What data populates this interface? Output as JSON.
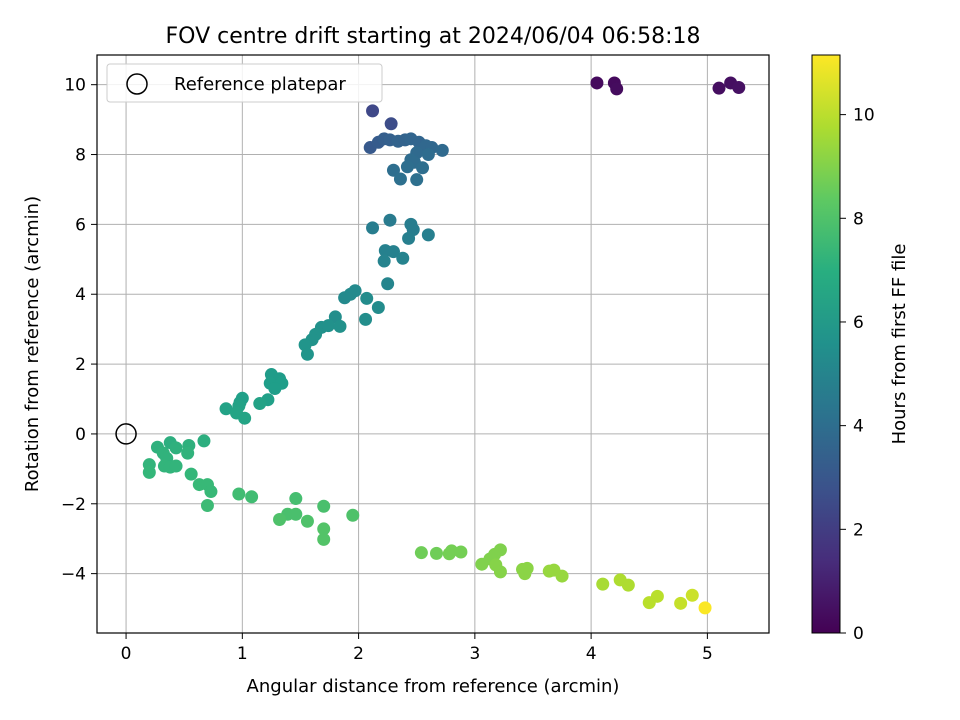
{
  "chart_data": {
    "type": "scatter",
    "title": "FOV centre drift starting at 2024/06/04 06:58:18",
    "xlabel": "Angular distance from reference (arcmin)",
    "ylabel": "Rotation from reference (arcmin)",
    "xlim": [
      -0.25,
      5.53
    ],
    "ylim": [
      -5.7,
      10.85
    ],
    "xticks": [
      0,
      1,
      2,
      3,
      4,
      5
    ],
    "yticks": [
      -4,
      -2,
      0,
      2,
      4,
      6,
      8,
      10
    ],
    "grid": true,
    "legend": {
      "placement": "top-left",
      "entries": [
        "Reference platepar"
      ]
    },
    "reference_point": {
      "x": 0,
      "y": 0,
      "label": "Reference platepar"
    },
    "colorbar": {
      "label": "Hours from first FF file",
      "range": [
        0,
        11.15
      ],
      "ticks": [
        0,
        2,
        4,
        6,
        8,
        10
      ],
      "colormap": "viridis"
    },
    "points": [
      {
        "x": 4.05,
        "y": 10.05,
        "c": 0.3
      },
      {
        "x": 4.2,
        "y": 10.05,
        "c": 0.3
      },
      {
        "x": 4.22,
        "y": 9.88,
        "c": 0.35
      },
      {
        "x": 5.1,
        "y": 9.9,
        "c": 0.4
      },
      {
        "x": 5.2,
        "y": 10.05,
        "c": 0.45
      },
      {
        "x": 5.27,
        "y": 9.92,
        "c": 0.5
      },
      {
        "x": 2.12,
        "y": 9.25,
        "c": 2.4
      },
      {
        "x": 2.28,
        "y": 8.88,
        "c": 2.6
      },
      {
        "x": 2.1,
        "y": 8.2,
        "c": 3.1
      },
      {
        "x": 2.17,
        "y": 8.35,
        "c": 3.2
      },
      {
        "x": 2.22,
        "y": 8.45,
        "c": 3.3
      },
      {
        "x": 2.27,
        "y": 8.42,
        "c": 3.4
      },
      {
        "x": 2.34,
        "y": 8.38,
        "c": 3.5
      },
      {
        "x": 2.4,
        "y": 8.42,
        "c": 3.5
      },
      {
        "x": 2.45,
        "y": 8.45,
        "c": 3.6
      },
      {
        "x": 2.52,
        "y": 8.35,
        "c": 3.6
      },
      {
        "x": 2.58,
        "y": 8.25,
        "c": 3.7
      },
      {
        "x": 2.63,
        "y": 8.2,
        "c": 3.7
      },
      {
        "x": 2.72,
        "y": 8.12,
        "c": 3.8
      },
      {
        "x": 2.5,
        "y": 8.05,
        "c": 3.8
      },
      {
        "x": 2.6,
        "y": 8.0,
        "c": 3.9
      },
      {
        "x": 2.45,
        "y": 7.85,
        "c": 3.9
      },
      {
        "x": 2.48,
        "y": 7.78,
        "c": 3.9
      },
      {
        "x": 2.42,
        "y": 7.65,
        "c": 4.0
      },
      {
        "x": 2.55,
        "y": 7.62,
        "c": 4.0
      },
      {
        "x": 2.3,
        "y": 7.55,
        "c": 4.0
      },
      {
        "x": 2.36,
        "y": 7.3,
        "c": 4.1
      },
      {
        "x": 2.5,
        "y": 7.28,
        "c": 4.1
      },
      {
        "x": 2.27,
        "y": 6.12,
        "c": 4.6
      },
      {
        "x": 2.45,
        "y": 6.0,
        "c": 4.7
      },
      {
        "x": 2.47,
        "y": 5.85,
        "c": 4.7
      },
      {
        "x": 2.12,
        "y": 5.9,
        "c": 4.7
      },
      {
        "x": 2.6,
        "y": 5.7,
        "c": 4.8
      },
      {
        "x": 2.43,
        "y": 5.6,
        "c": 4.8
      },
      {
        "x": 2.23,
        "y": 5.25,
        "c": 4.9
      },
      {
        "x": 2.3,
        "y": 5.22,
        "c": 4.9
      },
      {
        "x": 2.38,
        "y": 5.03,
        "c": 5.0
      },
      {
        "x": 2.22,
        "y": 4.95,
        "c": 5.0
      },
      {
        "x": 2.25,
        "y": 4.3,
        "c": 5.1
      },
      {
        "x": 1.97,
        "y": 4.1,
        "c": 5.3
      },
      {
        "x": 1.93,
        "y": 4.0,
        "c": 5.3
      },
      {
        "x": 1.88,
        "y": 3.9,
        "c": 5.3
      },
      {
        "x": 2.07,
        "y": 3.88,
        "c": 5.4
      },
      {
        "x": 2.17,
        "y": 3.62,
        "c": 5.4
      },
      {
        "x": 1.8,
        "y": 3.35,
        "c": 5.5
      },
      {
        "x": 2.06,
        "y": 3.28,
        "c": 5.5
      },
      {
        "x": 1.68,
        "y": 3.05,
        "c": 5.6
      },
      {
        "x": 1.74,
        "y": 3.1,
        "c": 5.6
      },
      {
        "x": 1.84,
        "y": 3.08,
        "c": 5.6
      },
      {
        "x": 1.63,
        "y": 2.85,
        "c": 5.7
      },
      {
        "x": 1.6,
        "y": 2.7,
        "c": 5.7
      },
      {
        "x": 1.54,
        "y": 2.55,
        "c": 5.8
      },
      {
        "x": 1.56,
        "y": 2.28,
        "c": 5.8
      },
      {
        "x": 1.25,
        "y": 1.7,
        "c": 6.1
      },
      {
        "x": 1.32,
        "y": 1.58,
        "c": 6.1
      },
      {
        "x": 1.24,
        "y": 1.45,
        "c": 6.2
      },
      {
        "x": 1.34,
        "y": 1.45,
        "c": 6.2
      },
      {
        "x": 1.28,
        "y": 1.3,
        "c": 6.2
      },
      {
        "x": 1.0,
        "y": 1.02,
        "c": 6.3
      },
      {
        "x": 0.98,
        "y": 0.9,
        "c": 6.3
      },
      {
        "x": 1.22,
        "y": 0.98,
        "c": 6.3
      },
      {
        "x": 1.15,
        "y": 0.87,
        "c": 6.4
      },
      {
        "x": 0.97,
        "y": 0.8,
        "c": 6.4
      },
      {
        "x": 0.86,
        "y": 0.72,
        "c": 6.4
      },
      {
        "x": 0.95,
        "y": 0.6,
        "c": 6.5
      },
      {
        "x": 1.02,
        "y": 0.45,
        "c": 6.5
      },
      {
        "x": 0.67,
        "y": -0.2,
        "c": 7.0
      },
      {
        "x": 0.38,
        "y": -0.25,
        "c": 7.0
      },
      {
        "x": 0.27,
        "y": -0.38,
        "c": 7.1
      },
      {
        "x": 0.43,
        "y": -0.4,
        "c": 7.1
      },
      {
        "x": 0.54,
        "y": -0.33,
        "c": 7.1
      },
      {
        "x": 0.32,
        "y": -0.55,
        "c": 7.2
      },
      {
        "x": 0.53,
        "y": -0.55,
        "c": 7.2
      },
      {
        "x": 0.35,
        "y": -0.7,
        "c": 7.2
      },
      {
        "x": 0.2,
        "y": -0.88,
        "c": 7.3
      },
      {
        "x": 0.33,
        "y": -0.92,
        "c": 7.3
      },
      {
        "x": 0.38,
        "y": -0.95,
        "c": 7.3
      },
      {
        "x": 0.43,
        "y": -0.92,
        "c": 7.3
      },
      {
        "x": 0.2,
        "y": -1.1,
        "c": 7.4
      },
      {
        "x": 0.56,
        "y": -1.15,
        "c": 7.4
      },
      {
        "x": 0.63,
        "y": -1.45,
        "c": 7.5
      },
      {
        "x": 0.7,
        "y": -1.45,
        "c": 7.5
      },
      {
        "x": 0.73,
        "y": -1.65,
        "c": 7.5
      },
      {
        "x": 0.7,
        "y": -2.05,
        "c": 7.6
      },
      {
        "x": 0.97,
        "y": -1.72,
        "c": 7.7
      },
      {
        "x": 1.08,
        "y": -1.8,
        "c": 7.7
      },
      {
        "x": 1.46,
        "y": -1.85,
        "c": 7.8
      },
      {
        "x": 1.7,
        "y": -2.07,
        "c": 7.9
      },
      {
        "x": 1.39,
        "y": -2.3,
        "c": 7.9
      },
      {
        "x": 1.46,
        "y": -2.3,
        "c": 7.9
      },
      {
        "x": 1.32,
        "y": -2.45,
        "c": 8.0
      },
      {
        "x": 1.56,
        "y": -2.5,
        "c": 8.0
      },
      {
        "x": 1.95,
        "y": -2.33,
        "c": 8.0
      },
      {
        "x": 1.7,
        "y": -2.72,
        "c": 8.1
      },
      {
        "x": 1.7,
        "y": -3.02,
        "c": 8.1
      },
      {
        "x": 2.54,
        "y": -3.4,
        "c": 8.7
      },
      {
        "x": 2.67,
        "y": -3.42,
        "c": 8.7
      },
      {
        "x": 2.78,
        "y": -3.43,
        "c": 8.8
      },
      {
        "x": 2.8,
        "y": -3.35,
        "c": 8.8
      },
      {
        "x": 2.88,
        "y": -3.38,
        "c": 8.8
      },
      {
        "x": 3.06,
        "y": -3.73,
        "c": 9.0
      },
      {
        "x": 3.13,
        "y": -3.58,
        "c": 9.0
      },
      {
        "x": 3.17,
        "y": -3.45,
        "c": 9.0
      },
      {
        "x": 3.22,
        "y": -3.32,
        "c": 9.0
      },
      {
        "x": 3.18,
        "y": -3.75,
        "c": 9.1
      },
      {
        "x": 3.22,
        "y": -3.95,
        "c": 9.1
      },
      {
        "x": 3.41,
        "y": -3.88,
        "c": 9.2
      },
      {
        "x": 3.43,
        "y": -4.0,
        "c": 9.2
      },
      {
        "x": 3.45,
        "y": -3.85,
        "c": 9.2
      },
      {
        "x": 3.64,
        "y": -3.93,
        "c": 9.4
      },
      {
        "x": 3.68,
        "y": -3.9,
        "c": 9.4
      },
      {
        "x": 3.75,
        "y": -4.07,
        "c": 9.4
      },
      {
        "x": 4.1,
        "y": -4.3,
        "c": 9.7
      },
      {
        "x": 4.25,
        "y": -4.18,
        "c": 9.8
      },
      {
        "x": 4.32,
        "y": -4.33,
        "c": 9.8
      },
      {
        "x": 4.57,
        "y": -4.65,
        "c": 10.0
      },
      {
        "x": 4.5,
        "y": -4.83,
        "c": 10.0
      },
      {
        "x": 4.77,
        "y": -4.85,
        "c": 10.2
      },
      {
        "x": 4.87,
        "y": -4.62,
        "c": 10.3
      },
      {
        "x": 4.98,
        "y": -4.98,
        "c": 11.1
      }
    ]
  }
}
